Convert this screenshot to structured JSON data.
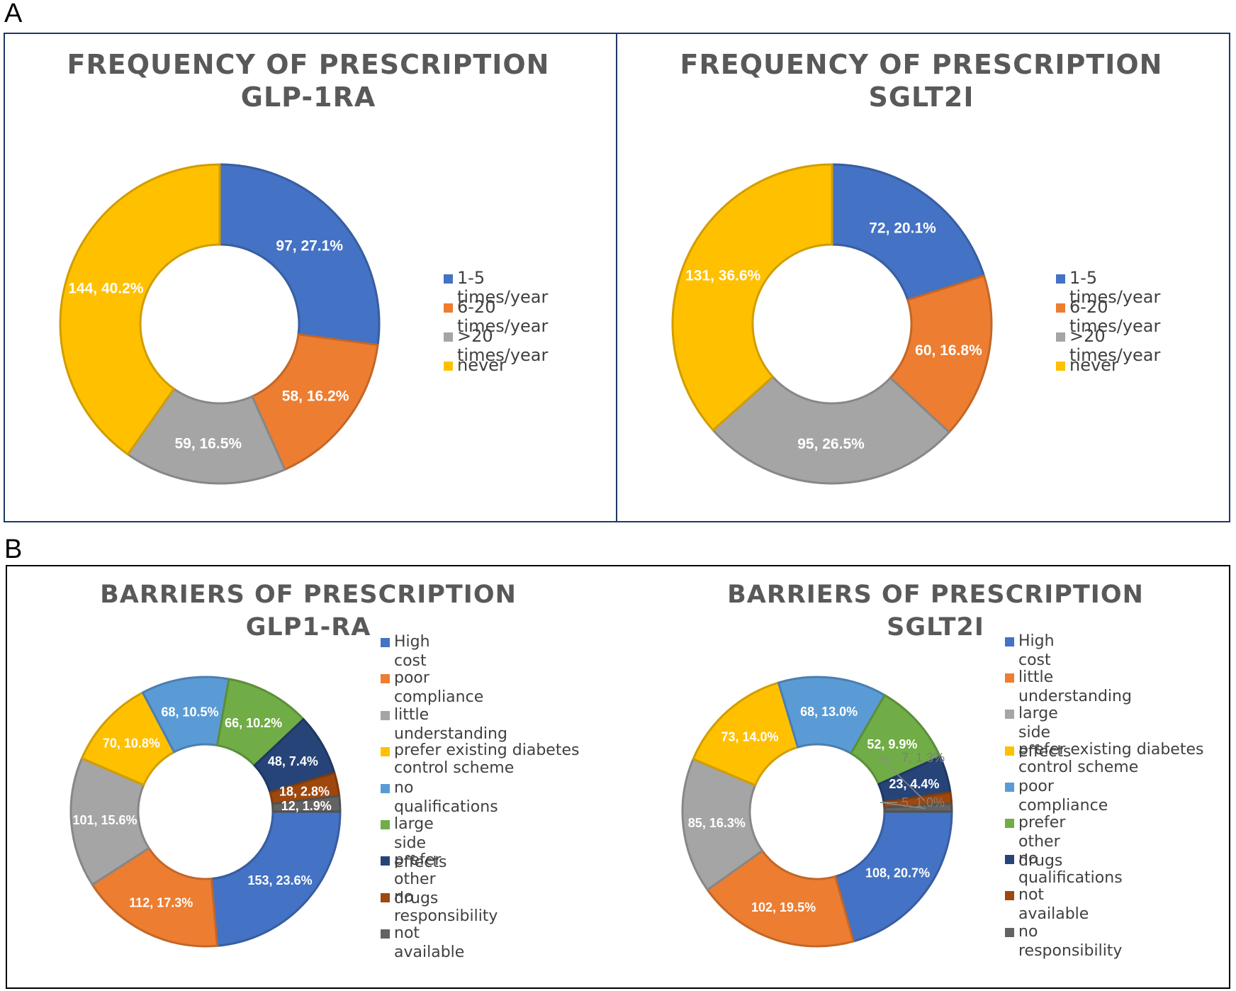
{
  "panels": {
    "a": {
      "label": "A"
    },
    "b": {
      "label": "B"
    }
  },
  "colors": {
    "blue": "#4472C4",
    "orange": "#ED7D31",
    "gray": "#A5A5A5",
    "yellow": "#FFC000",
    "light_blue": "#5B9BD5",
    "green": "#70AD47",
    "navy": "#264478",
    "brown": "#9E480E",
    "dark_gray": "#636363"
  },
  "chart_data": [
    {
      "type": "pie",
      "variant": "doughnut",
      "title": "FREQUENCY OF PRESCRIPTION GLP-1RA",
      "title_lines": [
        "FREQUENCY OF PRESCRIPTION",
        "GLP-1RA"
      ],
      "start_angle_deg": 0,
      "direction": "clockwise",
      "slices": [
        {
          "label": "1-5 times/year",
          "value": 97,
          "percent": 27.1,
          "data_label": "97, 27.1%",
          "color": "#4472C4"
        },
        {
          "label": "6-20 times/year",
          "value": 58,
          "percent": 16.2,
          "data_label": "58, 16.2%",
          "color": "#ED7D31"
        },
        {
          "label": ">20 times/year",
          "value": 59,
          "percent": 16.5,
          "data_label": "59, 16.5%",
          "color": "#A5A5A5"
        },
        {
          "label": "never",
          "value": 144,
          "percent": 40.2,
          "data_label": "144, 40.2%",
          "color": "#FFC000"
        }
      ],
      "legend": [
        "1-5 times/year",
        "6-20 times/year",
        ">20 times/year",
        "never"
      ],
      "legend_position": "right"
    },
    {
      "type": "pie",
      "variant": "doughnut",
      "title": "FREQUENCY OF PRESCRIPTION SGLT2I",
      "title_lines": [
        "FREQUENCY OF PRESCRIPTION",
        "SGLT2I"
      ],
      "start_angle_deg": 0,
      "direction": "clockwise",
      "slices": [
        {
          "label": "1-5 times/year",
          "value": 72,
          "percent": 20.1,
          "data_label": "72, 20.1%",
          "color": "#4472C4"
        },
        {
          "label": "6-20 times/year",
          "value": 60,
          "percent": 16.8,
          "data_label": "60, 16.8%",
          "color": "#ED7D31"
        },
        {
          "label": ">20 times/year",
          "value": 95,
          "percent": 26.5,
          "data_label": "95, 26.5%",
          "color": "#A5A5A5"
        },
        {
          "label": "never",
          "value": 131,
          "percent": 36.6,
          "data_label": "131, 36.6%",
          "color": "#FFC000"
        }
      ],
      "legend": [
        "1-5 times/year",
        "6-20 times/year",
        ">20 times/year",
        "never"
      ],
      "legend_position": "right"
    },
    {
      "type": "pie",
      "variant": "doughnut",
      "title": "BARRIERS OF PRESCRIPTION GLP1-RA",
      "title_lines": [
        "BARRIERS OF PRESCRIPTION",
        "GLP1-RA"
      ],
      "start_angle_deg": 90,
      "direction": "clockwise",
      "slices": [
        {
          "label": "High cost",
          "value": 153,
          "percent": 23.6,
          "data_label": "153, 23.6%",
          "color": "#4472C4"
        },
        {
          "label": "poor compliance",
          "value": 112,
          "percent": 17.3,
          "data_label": "112, 17.3%",
          "color": "#ED7D31"
        },
        {
          "label": "little understanding",
          "value": 101,
          "percent": 15.6,
          "data_label": "101, 15.6%",
          "color": "#A5A5A5"
        },
        {
          "label": "prefer existing diabetes control scheme",
          "value": 70,
          "percent": 10.8,
          "data_label": "70, 10.8%",
          "color": "#FFC000"
        },
        {
          "label": "no qualifications",
          "value": 68,
          "percent": 10.5,
          "data_label": "68, 10.5%",
          "color": "#5B9BD5"
        },
        {
          "label": "large side effects",
          "value": 66,
          "percent": 10.2,
          "data_label": "66, 10.2%",
          "color": "#70AD47"
        },
        {
          "label": "prefer other drugs",
          "value": 48,
          "percent": 7.4,
          "data_label": "48, 7.4%",
          "color": "#264478"
        },
        {
          "label": "no responsibility",
          "value": 18,
          "percent": 2.8,
          "data_label": "18, 2.8%",
          "color": "#9E480E"
        },
        {
          "label": "not available",
          "value": 12,
          "percent": 1.9,
          "data_label": "12, 1.9%",
          "color": "#636363"
        }
      ],
      "legend": [
        "High cost",
        "poor compliance",
        "little understanding",
        "prefer existing diabetes control scheme",
        "no qualifications",
        "large side effects",
        "prefer other drugs",
        "no responsibility",
        "not available"
      ],
      "legend_position": "right"
    },
    {
      "type": "pie",
      "variant": "doughnut",
      "title": "BARRIERS OF PRESCRIPTION SGLT2I",
      "title_lines": [
        "BARRIERS OF PRESCRIPTION SGLT2I"
      ],
      "start_angle_deg": 90,
      "direction": "clockwise",
      "slices": [
        {
          "label": "High cost",
          "value": 108,
          "percent": 20.7,
          "data_label": "108, 20.7%",
          "color": "#4472C4"
        },
        {
          "label": "little understanding",
          "value": 102,
          "percent": 19.5,
          "data_label": "102, 19.5%",
          "color": "#ED7D31"
        },
        {
          "label": "large side effects",
          "value": 85,
          "percent": 16.3,
          "data_label": "85, 16.3%",
          "color": "#A5A5A5"
        },
        {
          "label": "prefer existing diabetes control scheme",
          "value": 73,
          "percent": 14.0,
          "data_label": "73, 14.0%",
          "color": "#FFC000"
        },
        {
          "label": "poor compliance",
          "value": 68,
          "percent": 13.0,
          "data_label": "68, 13.0%",
          "color": "#5B9BD5"
        },
        {
          "label": "prefer other drugs",
          "value": 52,
          "percent": 9.9,
          "data_label": "52, 9.9%",
          "color": "#70AD47"
        },
        {
          "label": "no qualifications",
          "value": 23,
          "percent": 4.4,
          "data_label": "23, 4.4%",
          "color": "#264478"
        },
        {
          "label": "not available",
          "value": 7,
          "percent": 1.3,
          "data_label": "7, 1.3%",
          "color": "#9E480E",
          "callout": true
        },
        {
          "label": "no responsibility",
          "value": 5,
          "percent": 1.0,
          "data_label": "5, 1.0%",
          "color": "#636363",
          "callout": true
        }
      ],
      "legend": [
        "High cost",
        "little understanding",
        "large side effects",
        "prefer existing diabetes control scheme",
        "poor compliance",
        "prefer other drugs",
        "no qualifications",
        "not available",
        "no responsibility"
      ],
      "legend_position": "right"
    }
  ]
}
